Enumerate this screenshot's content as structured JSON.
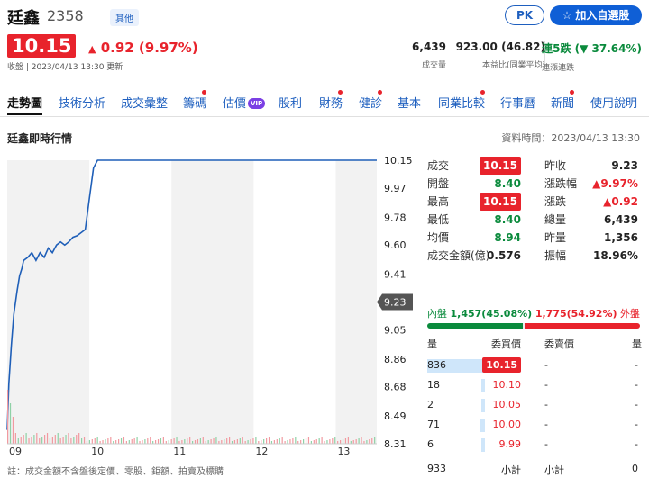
{
  "stock": {
    "name": "廷鑫",
    "code": "2358",
    "market": "其他",
    "price": "10.15",
    "change": "0.92 (9.97%)",
    "close_time": "收盤 | 2023/04/13 13:30 更新",
    "change_icon": "triangle-up"
  },
  "actions": {
    "pk": "PK",
    "add_watch": "加入自選股",
    "add_icon": "star"
  },
  "header_stats": [
    {
      "value": "6,439",
      "label": "成交量"
    },
    {
      "value": "923.00 (46.82)",
      "label": "本益比(同業平均)"
    }
  ],
  "streak": {
    "value": "連5跌",
    "pct": "(▼ 37.64%)",
    "label": "連漲連跌"
  },
  "tabs": [
    {
      "label": "走勢圖",
      "active": true,
      "dot": false,
      "vip": false
    },
    {
      "label": "技術分析",
      "active": false,
      "dot": false,
      "vip": false
    },
    {
      "label": "成交彙整",
      "active": false,
      "dot": false,
      "vip": false
    },
    {
      "label": "籌碼",
      "active": false,
      "dot": true,
      "vip": false
    },
    {
      "label": "估價",
      "active": false,
      "dot": false,
      "vip": true
    },
    {
      "label": "股利",
      "active": false,
      "dot": false,
      "vip": false
    },
    {
      "label": "財務",
      "active": false,
      "dot": true,
      "vip": false
    },
    {
      "label": "健診",
      "active": false,
      "dot": true,
      "vip": false
    },
    {
      "label": "基本",
      "active": false,
      "dot": false,
      "vip": false
    },
    {
      "label": "同業比較",
      "active": false,
      "dot": true,
      "vip": false
    },
    {
      "label": "行事曆",
      "active": false,
      "dot": false,
      "vip": false
    },
    {
      "label": "新聞",
      "active": false,
      "dot": true,
      "vip": false
    },
    {
      "label": "使用說明",
      "active": false,
      "dot": false,
      "vip": false
    }
  ],
  "vip_label": "VIP",
  "section_title": "廷鑫即時行情",
  "data_time": "資料時間：2023/04/13 13:30",
  "footnote": "註：成交金額不含盤後定價、零股、鉅額、拍賣及標購",
  "chart_data": {
    "type": "line",
    "x_ticks": [
      "09",
      "10",
      "11",
      "12",
      "13"
    ],
    "y_ticks": [
      "10.15",
      "9.97",
      "9.78",
      "9.60",
      "9.41",
      "9.23",
      "9.05",
      "8.86",
      "8.68",
      "8.49",
      "8.31"
    ],
    "reference_price": "9.23",
    "ylim": [
      8.31,
      10.15
    ],
    "series": [
      {
        "x": [
          9.0,
          9.02,
          9.05,
          9.08,
          9.12,
          9.15,
          9.18,
          9.2,
          9.25,
          9.3,
          9.35,
          9.4,
          9.45,
          9.5,
          9.55,
          9.6,
          9.65,
          9.7,
          9.75,
          9.8,
          9.85,
          9.9,
          9.95,
          10.0,
          10.05,
          10.1,
          10.2,
          10.5,
          11.0,
          12.0,
          13.0,
          13.5
        ],
        "values": [
          8.4,
          8.7,
          8.95,
          9.15,
          9.3,
          9.4,
          9.45,
          9.5,
          9.52,
          9.55,
          9.5,
          9.55,
          9.52,
          9.58,
          9.55,
          9.6,
          9.62,
          9.6,
          9.62,
          9.65,
          9.66,
          9.68,
          9.7,
          9.9,
          10.1,
          10.15,
          10.15,
          10.15,
          10.15,
          10.15,
          10.15,
          10.15
        ]
      }
    ],
    "grid": true
  },
  "quote_left": [
    {
      "label": "成交",
      "value": "10.15",
      "style": "box"
    },
    {
      "label": "開盤",
      "value": "8.40",
      "style": "green"
    },
    {
      "label": "最高",
      "value": "10.15",
      "style": "box"
    },
    {
      "label": "最低",
      "value": "8.40",
      "style": "green"
    },
    {
      "label": "均價",
      "value": "8.94",
      "style": "green"
    },
    {
      "label": "成交金額(億)",
      "value": "0.576",
      "style": "dark"
    }
  ],
  "quote_right": [
    {
      "label": "昨收",
      "value": "9.23",
      "style": "dark"
    },
    {
      "label": "漲跌幅",
      "value": "▲9.97%",
      "style": "red"
    },
    {
      "label": "漲跌",
      "value": "▲0.92",
      "style": "red"
    },
    {
      "label": "總量",
      "value": "6,439",
      "style": "dark"
    },
    {
      "label": "昨量",
      "value": "1,356",
      "style": "dark"
    },
    {
      "label": "振幅",
      "value": "18.96%",
      "style": "dark"
    }
  ],
  "inner_outer": {
    "inner_label": "內盤",
    "inner_value": "1,457(45.08%)",
    "outer_label": "外盤",
    "outer_value": "1,775(54.92%)",
    "inner_pct": 45.08,
    "outer_pct": 54.92
  },
  "order_book": {
    "headers": {
      "qty": "量",
      "bid": "委買價",
      "ask": "委賣價",
      "qty2": "量"
    },
    "rows": [
      {
        "qty": "836",
        "bid": "10.15",
        "ask": "-",
        "ask_qty": "-",
        "fill": 1.0,
        "highlight": true
      },
      {
        "qty": "18",
        "bid": "10.10",
        "ask": "-",
        "ask_qty": "-",
        "fill": 0.02,
        "highlight": false
      },
      {
        "qty": "2",
        "bid": "10.05",
        "ask": "-",
        "ask_qty": "-",
        "fill": 0.005,
        "highlight": false
      },
      {
        "qty": "71",
        "bid": "10.00",
        "ask": "-",
        "ask_qty": "-",
        "fill": 0.08,
        "highlight": false
      },
      {
        "qty": "6",
        "bid": "9.99",
        "ask": "-",
        "ask_qty": "-",
        "fill": 0.01,
        "highlight": false
      }
    ],
    "total": {
      "qty": "933",
      "label": "小計",
      "label2": "小計",
      "qty2": "0"
    }
  }
}
